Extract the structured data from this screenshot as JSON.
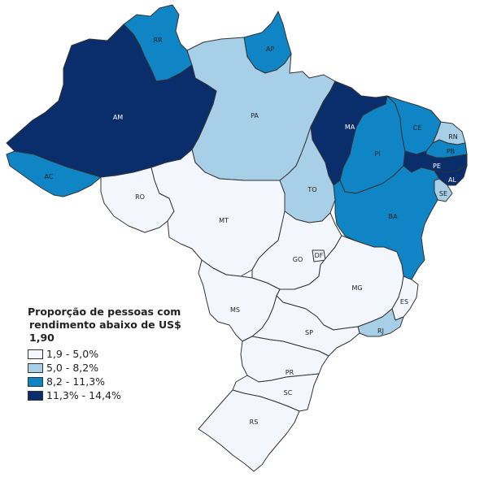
{
  "legend": {
    "title_line1": "Proporção de pessoas com",
    "title_line2": "rendimento abaixo de US$ 1,90",
    "classes": [
      {
        "label": "1,9 - 5,0%",
        "color": "#f3f7fd"
      },
      {
        "label": "5,0 - 8,2%",
        "color": "#a7cfe8"
      },
      {
        "label": "8,2 - 11,3%",
        "color": "#0f85c6"
      },
      {
        "label": "11,3% - 14,4%",
        "color": "#0a2d6c"
      }
    ]
  },
  "states": [
    {
      "code": "RR",
      "class": 2
    },
    {
      "code": "AP",
      "class": 2
    },
    {
      "code": "AM",
      "class": 3
    },
    {
      "code": "PA",
      "class": 1
    },
    {
      "code": "MA",
      "class": 3
    },
    {
      "code": "CE",
      "class": 2
    },
    {
      "code": "RN",
      "class": 1
    },
    {
      "code": "PB",
      "class": 2
    },
    {
      "code": "PI",
      "class": 2
    },
    {
      "code": "PE",
      "class": 3
    },
    {
      "code": "AL",
      "class": 3
    },
    {
      "code": "SE",
      "class": 1
    },
    {
      "code": "AC",
      "class": 2
    },
    {
      "code": "RO",
      "class": 0
    },
    {
      "code": "TO",
      "class": 1
    },
    {
      "code": "BA",
      "class": 2
    },
    {
      "code": "MT",
      "class": 0
    },
    {
      "code": "GO",
      "class": 0
    },
    {
      "code": "DF",
      "class": 0
    },
    {
      "code": "MG",
      "class": 0
    },
    {
      "code": "ES",
      "class": 0
    },
    {
      "code": "MS",
      "class": 0
    },
    {
      "code": "SP",
      "class": 0
    },
    {
      "code": "RJ",
      "class": 1
    },
    {
      "code": "PR",
      "class": 0
    },
    {
      "code": "SC",
      "class": 0
    },
    {
      "code": "RS",
      "class": 0
    }
  ]
}
